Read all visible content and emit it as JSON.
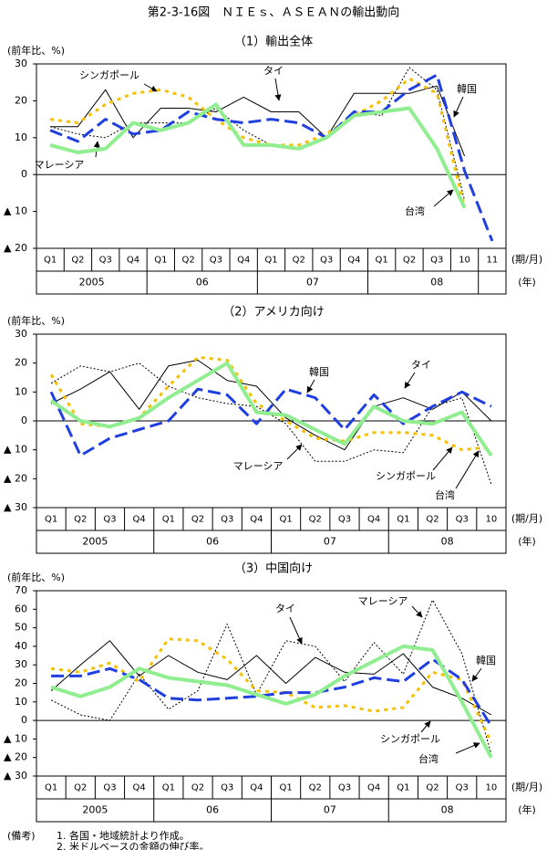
{
  "title": "第2-3-16図　ＮＩＥｓ、ＡＳＥＡＮの輸出動向",
  "notes": {
    "head": "(備考)",
    "items": [
      "1. 各国・地域統計より作成。",
      "2. 米ドルベースの金額の伸び率。"
    ]
  },
  "chart_data": [
    {
      "type": "line",
      "title": "（1）輸出全体",
      "ylabel": "(前年比、%)",
      "xlabel": "(期/月)",
      "year_axis_label": "(年)",
      "categories": [
        "Q1",
        "Q2",
        "Q3",
        "Q4",
        "Q1",
        "Q2",
        "Q3",
        "Q4",
        "Q1",
        "Q2",
        "Q3",
        "Q4",
        "Q1",
        "Q2",
        "Q3",
        "10",
        "11"
      ],
      "year_labels": [
        "2005",
        "06",
        "07",
        "08"
      ],
      "ylim": [
        -20,
        30
      ],
      "yticks": [
        {
          "value": -20,
          "label": "▲ 20"
        },
        {
          "value": -10,
          "label": "▲ 10"
        },
        0,
        10,
        20,
        30
      ],
      "series": [
        {
          "name": "韓国",
          "color": "#1f3fe0",
          "dash": "dashed",
          "values": [
            12,
            9,
            15,
            11,
            12,
            17,
            15,
            14,
            15,
            14,
            10,
            17,
            17,
            23,
            27,
            1,
            -18
          ]
        },
        {
          "name": "台湾",
          "color": "#90ee90",
          "dash": "solid",
          "values": [
            8,
            6,
            7,
            14,
            12,
            14,
            19,
            8,
            8,
            7,
            10,
            16,
            17,
            18,
            7,
            -9,
            null
          ]
        },
        {
          "name": "シンガポール",
          "color": "#f5c000",
          "dash": "dotted",
          "values": [
            15,
            14,
            19,
            22,
            23,
            21,
            15,
            10,
            8,
            8,
            11,
            16,
            20,
            26,
            22,
            -9,
            null
          ]
        },
        {
          "name": "タイ",
          "color": "#000000",
          "dash": "solid",
          "values": [
            13,
            13,
            23,
            10,
            18,
            18,
            17,
            21,
            17,
            17,
            10,
            22,
            22,
            22,
            24,
            5,
            null
          ]
        },
        {
          "name": "マレーシア",
          "color": "#000000",
          "dash": "fine-dotted",
          "values": [
            13,
            11,
            10,
            14,
            14,
            14,
            18,
            12,
            8,
            7,
            10,
            17,
            16,
            29,
            23,
            -7,
            null
          ]
        }
      ]
    },
    {
      "type": "line",
      "title": "（2）アメリカ向け",
      "ylabel": "(前年比、%)",
      "xlabel": "(期/月)",
      "year_axis_label": "(年)",
      "categories": [
        "Q1",
        "Q2",
        "Q3",
        "Q4",
        "Q1",
        "Q2",
        "Q3",
        "Q4",
        "Q1",
        "Q2",
        "Q3",
        "Q4",
        "Q1",
        "Q2",
        "Q3",
        "10"
      ],
      "year_labels": [
        "2005",
        "06",
        "07",
        "08"
      ],
      "ylim": [
        -30,
        30
      ],
      "yticks": [
        {
          "value": -30,
          "label": "▲ 30"
        },
        {
          "value": -20,
          "label": "▲ 20"
        },
        {
          "value": -10,
          "label": "▲ 10"
        },
        0,
        10,
        20,
        30
      ],
      "series": [
        {
          "name": "韓国",
          "color": "#1f3fe0",
          "dash": "dashed",
          "values": [
            10,
            -12,
            -6,
            -3,
            0,
            11,
            9,
            -1,
            11,
            8,
            -3,
            9,
            -1,
            5,
            10,
            5
          ]
        },
        {
          "name": "台湾",
          "color": "#90ee90",
          "dash": "solid",
          "values": [
            7,
            0,
            -2,
            1,
            8,
            14,
            20,
            3,
            2,
            -3,
            -8,
            5,
            0,
            -1,
            3,
            -12
          ]
        },
        {
          "name": "シンガポール",
          "color": "#f5c000",
          "dash": "dotted",
          "values": [
            16,
            -1,
            -2,
            1,
            12,
            22,
            21,
            6,
            0,
            -6,
            -7,
            -4,
            -4,
            -5,
            -10,
            -9
          ]
        },
        {
          "name": "タイ",
          "color": "#000000",
          "dash": "solid",
          "values": [
            6,
            11,
            17,
            4,
            19,
            21,
            14,
            12,
            1,
            -5,
            -10,
            5,
            8,
            4,
            10,
            0
          ]
        },
        {
          "name": "マレーシア",
          "color": "#000000",
          "dash": "fine-dotted",
          "values": [
            13,
            19,
            17,
            20,
            12,
            8,
            6,
            5,
            -1,
            -14,
            -14,
            -10,
            -11,
            5,
            8,
            -22
          ]
        }
      ]
    },
    {
      "type": "line",
      "title": "（3）中国向け",
      "ylabel": "(前年比、%)",
      "xlabel": "(期/月)",
      "year_axis_label": "(年)",
      "categories": [
        "Q1",
        "Q2",
        "Q3",
        "Q4",
        "Q1",
        "Q2",
        "Q3",
        "Q4",
        "Q1",
        "Q2",
        "Q3",
        "Q4",
        "Q1",
        "Q2",
        "Q3",
        "10"
      ],
      "year_labels": [
        "2005",
        "06",
        "07",
        "08"
      ],
      "ylim": [
        -30,
        70
      ],
      "yticks": [
        {
          "value": -30,
          "label": "▲ 30"
        },
        {
          "value": -20,
          "label": "▲ 20"
        },
        {
          "value": -10,
          "label": "▲ 10"
        },
        0,
        10,
        20,
        30,
        40,
        50,
        60,
        70
      ],
      "series": [
        {
          "name": "韓国",
          "color": "#1f3fe0",
          "dash": "dashed",
          "values": [
            24,
            24,
            28,
            22,
            12,
            11,
            12,
            13,
            15,
            15,
            18,
            23,
            21,
            33,
            22,
            -3
          ]
        },
        {
          "name": "台湾",
          "color": "#90ee90",
          "dash": "solid",
          "values": [
            18,
            13,
            18,
            28,
            23,
            21,
            19,
            14,
            9,
            14,
            24,
            32,
            40,
            38,
            10,
            -20
          ]
        },
        {
          "name": "シンガポール",
          "color": "#f5c000",
          "dash": "dotted",
          "values": [
            28,
            26,
            31,
            21,
            44,
            43,
            33,
            16,
            15,
            7,
            8,
            5,
            7,
            26,
            22,
            -12
          ]
        },
        {
          "name": "タイ",
          "color": "#000000",
          "dash": "solid",
          "values": [
            16,
            30,
            43,
            24,
            35,
            26,
            22,
            35,
            20,
            34,
            26,
            25,
            36,
            18,
            12,
            3
          ]
        },
        {
          "name": "マレーシア",
          "color": "#000000",
          "dash": "fine-dotted",
          "values": [
            11,
            3,
            0,
            25,
            6,
            16,
            52,
            14,
            43,
            40,
            21,
            42,
            25,
            65,
            36,
            -18
          ]
        }
      ]
    }
  ]
}
